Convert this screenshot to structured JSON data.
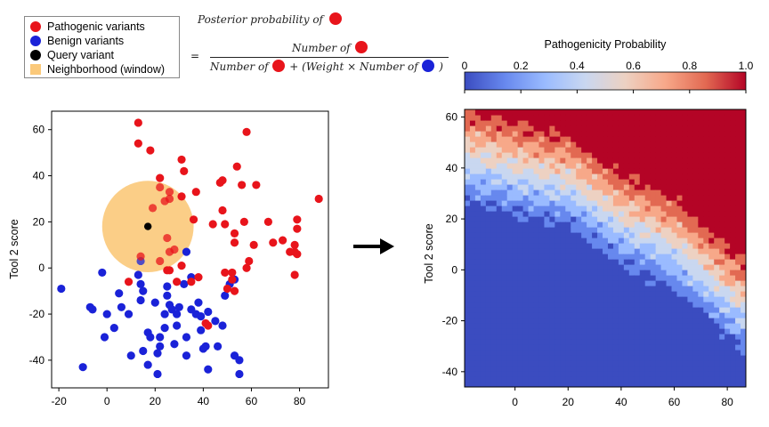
{
  "legend": {
    "items": [
      {
        "label": "Pathogenic variants",
        "color": "#e8141b",
        "shape": "circle"
      },
      {
        "label": "Benign variants",
        "color": "#1a22d8",
        "shape": "circle"
      },
      {
        "label": "Query variant",
        "color": "#000000",
        "shape": "circle"
      },
      {
        "label": "Neighborhood (window)",
        "color": "#fbc97a",
        "shape": "square"
      }
    ]
  },
  "formula": {
    "top_line": "Posterior probability of",
    "equals": "=",
    "numerator": "Number of",
    "denominator_a": "Number of",
    "plus": "+ (Weight  × Number of",
    "close_paren": ")"
  },
  "colorbar": {
    "title": "Pathogenicity Probability",
    "ticks": [
      "0",
      "0.2",
      "0.4",
      "0.6",
      "0.8",
      "1.0"
    ],
    "colors": [
      "#3b4cc0",
      "#6788ee",
      "#9abbff",
      "#c9d7f0",
      "#edd1c2",
      "#f7a889",
      "#e26952",
      "#b40426"
    ]
  },
  "chart_data": [
    {
      "type": "scatter",
      "title": "",
      "xlabel": "",
      "ylabel": "Tool 2 score",
      "xlim": [
        -23,
        92
      ],
      "ylim": [
        -52,
        68
      ],
      "xticks": [
        -20,
        0,
        20,
        40,
        60,
        80
      ],
      "yticks": [
        -40,
        -20,
        0,
        20,
        40,
        60
      ],
      "neighborhood": {
        "center": [
          17,
          18
        ],
        "radius": 19,
        "color": "#fbc97a"
      },
      "query": {
        "x": 17,
        "y": 18,
        "color": "#000000"
      },
      "series": [
        {
          "name": "Pathogenic variants",
          "color": "#e8141b",
          "points": [
            [
              13,
              63
            ],
            [
              13,
              54
            ],
            [
              18,
              51
            ],
            [
              58,
              59
            ],
            [
              31,
              47
            ],
            [
              32,
              42
            ],
            [
              37,
              33
            ],
            [
              47,
              37
            ],
            [
              48,
              38
            ],
            [
              54,
              44
            ],
            [
              56,
              36
            ],
            [
              62,
              36
            ],
            [
              88,
              30
            ],
            [
              22,
              35
            ],
            [
              26,
              33
            ],
            [
              22,
              39
            ],
            [
              26,
              30
            ],
            [
              19,
              26
            ],
            [
              31,
              31
            ],
            [
              36,
              21
            ],
            [
              44,
              19
            ],
            [
              49,
              19
            ],
            [
              48,
              25
            ],
            [
              57,
              20
            ],
            [
              67,
              20
            ],
            [
              79,
              21
            ],
            [
              79,
              17
            ],
            [
              53,
              11
            ],
            [
              53,
              15
            ],
            [
              61,
              10
            ],
            [
              69,
              11
            ],
            [
              59,
              3
            ],
            [
              58,
              0
            ],
            [
              76,
              7
            ],
            [
              78,
              7
            ],
            [
              79,
              6
            ],
            [
              73,
              12
            ],
            [
              78,
              10
            ],
            [
              78,
              -3
            ],
            [
              26,
              -1
            ],
            [
              25,
              -1
            ],
            [
              29,
              -6
            ],
            [
              35,
              -6
            ],
            [
              49,
              -2
            ],
            [
              52,
              -2
            ],
            [
              52,
              -5
            ],
            [
              50,
              -9
            ],
            [
              53,
              -10
            ],
            [
              41,
              -24
            ],
            [
              42,
              -25
            ],
            [
              9,
              -6
            ],
            [
              14,
              5
            ],
            [
              22,
              3
            ],
            [
              25,
              13
            ],
            [
              26,
              7
            ],
            [
              28,
              8
            ],
            [
              31,
              1
            ],
            [
              38,
              -4
            ],
            [
              24,
              29
            ]
          ]
        },
        {
          "name": "Benign variants",
          "color": "#1a22d8",
          "points": [
            [
              -19,
              -9
            ],
            [
              -10,
              -43
            ],
            [
              -7,
              -17
            ],
            [
              -6,
              -18
            ],
            [
              -1,
              -30
            ],
            [
              -2,
              -2
            ],
            [
              0,
              -20
            ],
            [
              3,
              -26
            ],
            [
              5,
              -11
            ],
            [
              6,
              -17
            ],
            [
              9,
              -20
            ],
            [
              10,
              -38
            ],
            [
              13,
              -3
            ],
            [
              14,
              -14
            ],
            [
              14,
              -7
            ],
            [
              15,
              -10
            ],
            [
              15,
              -36
            ],
            [
              17,
              -28
            ],
            [
              17,
              -42
            ],
            [
              18,
              -30
            ],
            [
              20,
              -15
            ],
            [
              21,
              -46
            ],
            [
              21,
              -37
            ],
            [
              22,
              -34
            ],
            [
              22,
              -30
            ],
            [
              24,
              -20
            ],
            [
              24,
              -26
            ],
            [
              25,
              -8
            ],
            [
              25,
              -12
            ],
            [
              26,
              -16
            ],
            [
              27,
              -18
            ],
            [
              28,
              -33
            ],
            [
              29,
              -20
            ],
            [
              29,
              -25
            ],
            [
              30,
              -17
            ],
            [
              32,
              -7
            ],
            [
              33,
              -30
            ],
            [
              33,
              -38
            ],
            [
              35,
              -18
            ],
            [
              37,
              -20
            ],
            [
              38,
              -15
            ],
            [
              39,
              -21
            ],
            [
              39,
              -27
            ],
            [
              40,
              -35
            ],
            [
              41,
              -34
            ],
            [
              42,
              -19
            ],
            [
              42,
              -44
            ],
            [
              45,
              -23
            ],
            [
              46,
              -34
            ],
            [
              48,
              -25
            ],
            [
              49,
              -12
            ],
            [
              51,
              -7
            ],
            [
              53,
              -5
            ],
            [
              53,
              -38
            ],
            [
              55,
              -40
            ],
            [
              55,
              -46
            ],
            [
              35,
              -4
            ],
            [
              14,
              3
            ],
            [
              33,
              7
            ]
          ]
        }
      ]
    },
    {
      "type": "heatmap",
      "title": "",
      "xlabel": "",
      "ylabel": "Tool 2 score",
      "xlim": [
        -19,
        87
      ],
      "ylim": [
        -46,
        63
      ],
      "xticks": [
        0,
        20,
        40,
        60,
        80
      ],
      "yticks": [
        -40,
        -20,
        0,
        20,
        40,
        60
      ],
      "boundary_line": [
        [
          -19,
          45
        ],
        [
          20,
          35
        ],
        [
          40,
          20
        ],
        [
          60,
          10
        ],
        [
          87,
          -15
        ]
      ],
      "band_width": 20
    }
  ]
}
